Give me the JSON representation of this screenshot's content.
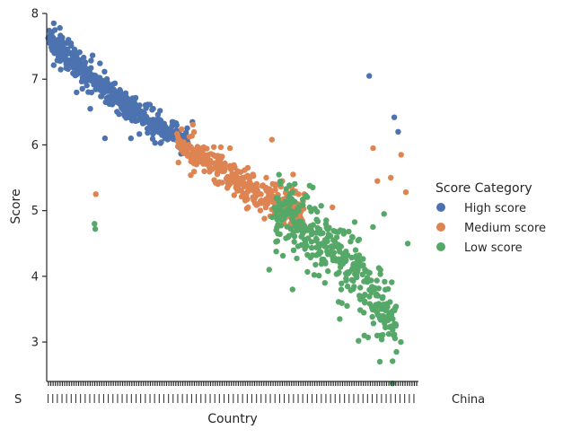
{
  "chart_data": {
    "type": "scatter",
    "title": "",
    "xlabel": "Country",
    "ylabel": "Score",
    "ylim": [
      2.4,
      8.0
    ],
    "yticks": [
      3,
      4,
      5,
      6,
      7,
      8
    ],
    "x_tick_labels_visible": [
      "S",
      "China"
    ],
    "grid": false,
    "legend": {
      "title": "Score Category",
      "placement": "right",
      "entries": [
        "High score",
        "Medium score",
        "Low score"
      ]
    },
    "colors": {
      "High score": "#4c72b0",
      "Medium score": "#dd8452",
      "Low score": "#55a868"
    },
    "category_count_approx": 160,
    "series": [
      {
        "name": "High score",
        "trend": [
          [
            0,
            7.6
          ],
          [
            8,
            7.35
          ],
          [
            20,
            7.0
          ],
          [
            35,
            6.55
          ],
          [
            48,
            6.25
          ],
          [
            60,
            6.05
          ]
        ],
        "spread": 0.12,
        "outliers": [
          [
            5,
            7.78
          ],
          [
            12,
            6.8
          ],
          [
            18,
            6.55
          ],
          [
            24,
            6.1
          ],
          [
            36,
            6.1
          ],
          [
            62,
            6.35
          ],
          [
            139,
            7.05
          ],
          [
            149,
            6.42
          ],
          [
            151,
            6.2
          ],
          [
            55,
            6.3
          ]
        ]
      },
      {
        "name": "Medium score",
        "trend": [
          [
            56,
            6.0
          ],
          [
            70,
            5.75
          ],
          [
            82,
            5.45
          ],
          [
            92,
            5.2
          ],
          [
            100,
            5.1
          ],
          [
            110,
            4.98
          ]
        ],
        "spread": 0.14,
        "outliers": [
          [
            20,
            5.25
          ],
          [
            78,
            5.95
          ],
          [
            86,
            5.05
          ],
          [
            96,
            6.08
          ],
          [
            106,
            5.55
          ],
          [
            123,
            5.05
          ],
          [
            140,
            5.95
          ],
          [
            142,
            5.45
          ],
          [
            148,
            5.5
          ],
          [
            152,
            5.85
          ],
          [
            154,
            5.28
          ]
        ],
        "extra_points": [
          [
            90,
            5.35
          ],
          [
            92,
            5.25
          ],
          [
            96,
            5.3
          ],
          [
            98,
            5.4
          ],
          [
            101,
            5.45
          ],
          [
            103,
            5.2
          ],
          [
            105,
            5.35
          ],
          [
            108,
            5.1
          ],
          [
            110,
            5.25
          ],
          [
            88,
            5.55
          ],
          [
            94,
            5.5
          ]
        ]
      },
      {
        "name": "Low score",
        "trend": [
          [
            98,
            4.95
          ],
          [
            110,
            4.75
          ],
          [
            122,
            4.45
          ],
          [
            132,
            4.15
          ],
          [
            142,
            3.65
          ],
          [
            150,
            3.3
          ]
        ],
        "spread": 0.35,
        "outliers": [
          [
            20,
            4.8
          ],
          [
            20,
            4.72
          ],
          [
            95,
            4.1
          ],
          [
            97,
            4.9
          ],
          [
            105,
            3.8
          ],
          [
            126,
            3.35
          ],
          [
            136,
            3.1
          ],
          [
            143,
            2.7
          ],
          [
            150,
            2.85
          ],
          [
            145,
            4.95
          ],
          [
            155,
            4.5
          ],
          [
            152,
            3.0
          ],
          [
            140,
            4.75
          ]
        ]
      }
    ]
  }
}
